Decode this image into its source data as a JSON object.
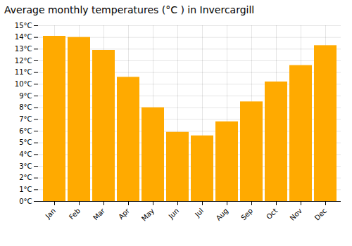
{
  "chart_data": {
    "type": "bar",
    "title": "Average monthly temperatures (°C ) in Invercargill",
    "categories": [
      "Jan",
      "Feb",
      "Mar",
      "Apr",
      "May",
      "Jun",
      "Jul",
      "Aug",
      "Sep",
      "Oct",
      "Nov",
      "Dec"
    ],
    "values": [
      14.1,
      14.0,
      12.9,
      10.6,
      8.0,
      5.9,
      5.6,
      6.8,
      8.5,
      10.2,
      11.6,
      13.3
    ],
    "color": "#FFAA00",
    "ylim": [
      0,
      15
    ],
    "yticks": [
      {
        "value": 0,
        "label": "0°C"
      },
      {
        "value": 1,
        "label": "1°C"
      },
      {
        "value": 2,
        "label": "2°C"
      },
      {
        "value": 3,
        "label": "3°C"
      },
      {
        "value": 4,
        "label": "4°C"
      },
      {
        "value": 5,
        "label": "5°C"
      },
      {
        "value": 6,
        "label": "6°C"
      },
      {
        "value": 7,
        "label": "7°C"
      },
      {
        "value": 8,
        "label": "8°C"
      },
      {
        "value": 9,
        "label": "9°C"
      },
      {
        "value": 10,
        "label": "10°C"
      },
      {
        "value": 11,
        "label": "11°C"
      },
      {
        "value": 12,
        "label": "12°C"
      },
      {
        "value": 13,
        "label": "13°C"
      },
      {
        "value": 14,
        "label": "14°C"
      },
      {
        "value": 15,
        "label": "15°C"
      }
    ],
    "grid": true
  }
}
